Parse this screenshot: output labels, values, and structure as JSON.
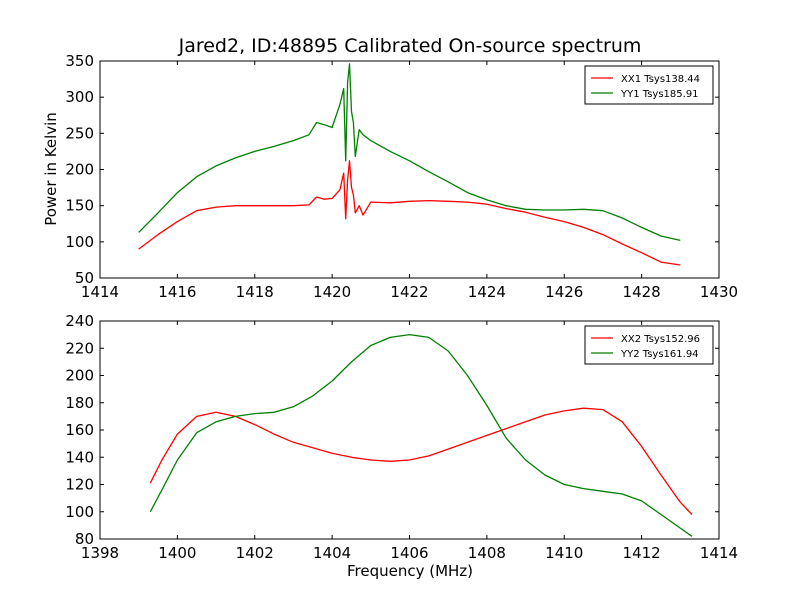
{
  "chart_data": [
    {
      "type": "line",
      "title": "Jared2, ID:48895 Calibrated On-source spectrum",
      "xlabel": "",
      "ylabel": "Power in Kelvin",
      "xlim": [
        1414,
        1430
      ],
      "ylim": [
        50,
        350
      ],
      "xticks": [
        "1414",
        "1416",
        "1418",
        "1420",
        "1422",
        "1424",
        "1426",
        "1428",
        "1430"
      ],
      "yticks": [
        "50",
        "100",
        "150",
        "200",
        "250",
        "300",
        "350"
      ],
      "legend_position": "top-right",
      "series": [
        {
          "name": "XX1 Tsys138.44",
          "color": "#ff0000",
          "x": [
            1415.0,
            1415.5,
            1416.0,
            1416.5,
            1417.0,
            1417.5,
            1418.0,
            1418.5,
            1419.0,
            1419.4,
            1419.6,
            1419.8,
            1420.0,
            1420.2,
            1420.3,
            1420.35,
            1420.4,
            1420.45,
            1420.5,
            1420.55,
            1420.6,
            1420.7,
            1420.8,
            1421.0,
            1421.5,
            1422.0,
            1422.5,
            1423.0,
            1423.5,
            1424.0,
            1424.5,
            1425.0,
            1425.5,
            1426.0,
            1426.5,
            1427.0,
            1427.5,
            1428.0,
            1428.5,
            1429.0
          ],
          "y": [
            90,
            110,
            128,
            143,
            148,
            150,
            150,
            150,
            150,
            151,
            162,
            159,
            160,
            172,
            195,
            132,
            185,
            212,
            175,
            165,
            140,
            150,
            137,
            155,
            154,
            156,
            157,
            156,
            155,
            152,
            146,
            141,
            134,
            128,
            120,
            110,
            97,
            85,
            72,
            68
          ]
        },
        {
          "name": "YY1 Tsys185.91",
          "color": "#008000",
          "x": [
            1415.0,
            1415.5,
            1416.0,
            1416.5,
            1417.0,
            1417.5,
            1418.0,
            1418.5,
            1419.0,
            1419.4,
            1419.6,
            1419.8,
            1420.0,
            1420.2,
            1420.3,
            1420.35,
            1420.4,
            1420.45,
            1420.5,
            1420.55,
            1420.6,
            1420.7,
            1420.8,
            1421.0,
            1421.5,
            1422.0,
            1422.5,
            1423.0,
            1423.5,
            1424.0,
            1424.5,
            1425.0,
            1425.5,
            1426.0,
            1426.5,
            1427.0,
            1427.5,
            1428.0,
            1428.5,
            1429.0
          ],
          "y": [
            113,
            140,
            168,
            190,
            205,
            216,
            225,
            232,
            240,
            248,
            265,
            262,
            258,
            290,
            312,
            212,
            320,
            346,
            280,
            265,
            218,
            255,
            248,
            240,
            225,
            212,
            197,
            183,
            168,
            158,
            150,
            145,
            144,
            144,
            145,
            143,
            133,
            120,
            108,
            102
          ]
        }
      ]
    },
    {
      "type": "line",
      "title": "",
      "xlabel": "Frequency (MHz)",
      "ylabel": "",
      "xlim": [
        1398,
        1414
      ],
      "ylim": [
        80,
        240
      ],
      "xticks": [
        "1398",
        "1400",
        "1402",
        "1404",
        "1406",
        "1408",
        "1410",
        "1412",
        "1414"
      ],
      "yticks": [
        "80",
        "100",
        "120",
        "140",
        "160",
        "180",
        "200",
        "220",
        "240"
      ],
      "legend_position": "top-right",
      "series": [
        {
          "name": "XX2 Tsys152.96",
          "color": "#ff0000",
          "x": [
            1399.3,
            1399.6,
            1400.0,
            1400.5,
            1401.0,
            1401.5,
            1402.0,
            1402.5,
            1403.0,
            1403.5,
            1404.0,
            1404.5,
            1405.0,
            1405.5,
            1406.0,
            1406.5,
            1407.0,
            1407.5,
            1408.0,
            1408.5,
            1409.0,
            1409.5,
            1410.0,
            1410.5,
            1411.0,
            1411.5,
            1412.0,
            1412.5,
            1413.0,
            1413.3
          ],
          "y": [
            121,
            138,
            157,
            170,
            173,
            170,
            164,
            157,
            151,
            147,
            143,
            140,
            138,
            137,
            138,
            141,
            146,
            151,
            156,
            161,
            166,
            171,
            174,
            176,
            175,
            166,
            148,
            127,
            107,
            98
          ]
        },
        {
          "name": "YY2 Tsys161.94",
          "color": "#008000",
          "x": [
            1399.3,
            1399.6,
            1400.0,
            1400.5,
            1401.0,
            1401.5,
            1402.0,
            1402.5,
            1403.0,
            1403.5,
            1404.0,
            1404.5,
            1405.0,
            1405.5,
            1406.0,
            1406.5,
            1407.0,
            1407.5,
            1408.0,
            1408.5,
            1409.0,
            1409.5,
            1410.0,
            1410.5,
            1411.0,
            1411.5,
            1412.0,
            1412.5,
            1413.0,
            1413.3
          ],
          "y": [
            100,
            116,
            138,
            158,
            166,
            170,
            172,
            173,
            177,
            185,
            196,
            210,
            222,
            228,
            230,
            228,
            218,
            200,
            178,
            154,
            138,
            127,
            120,
            117,
            115,
            113,
            108,
            98,
            88,
            82
          ]
        }
      ]
    }
  ]
}
